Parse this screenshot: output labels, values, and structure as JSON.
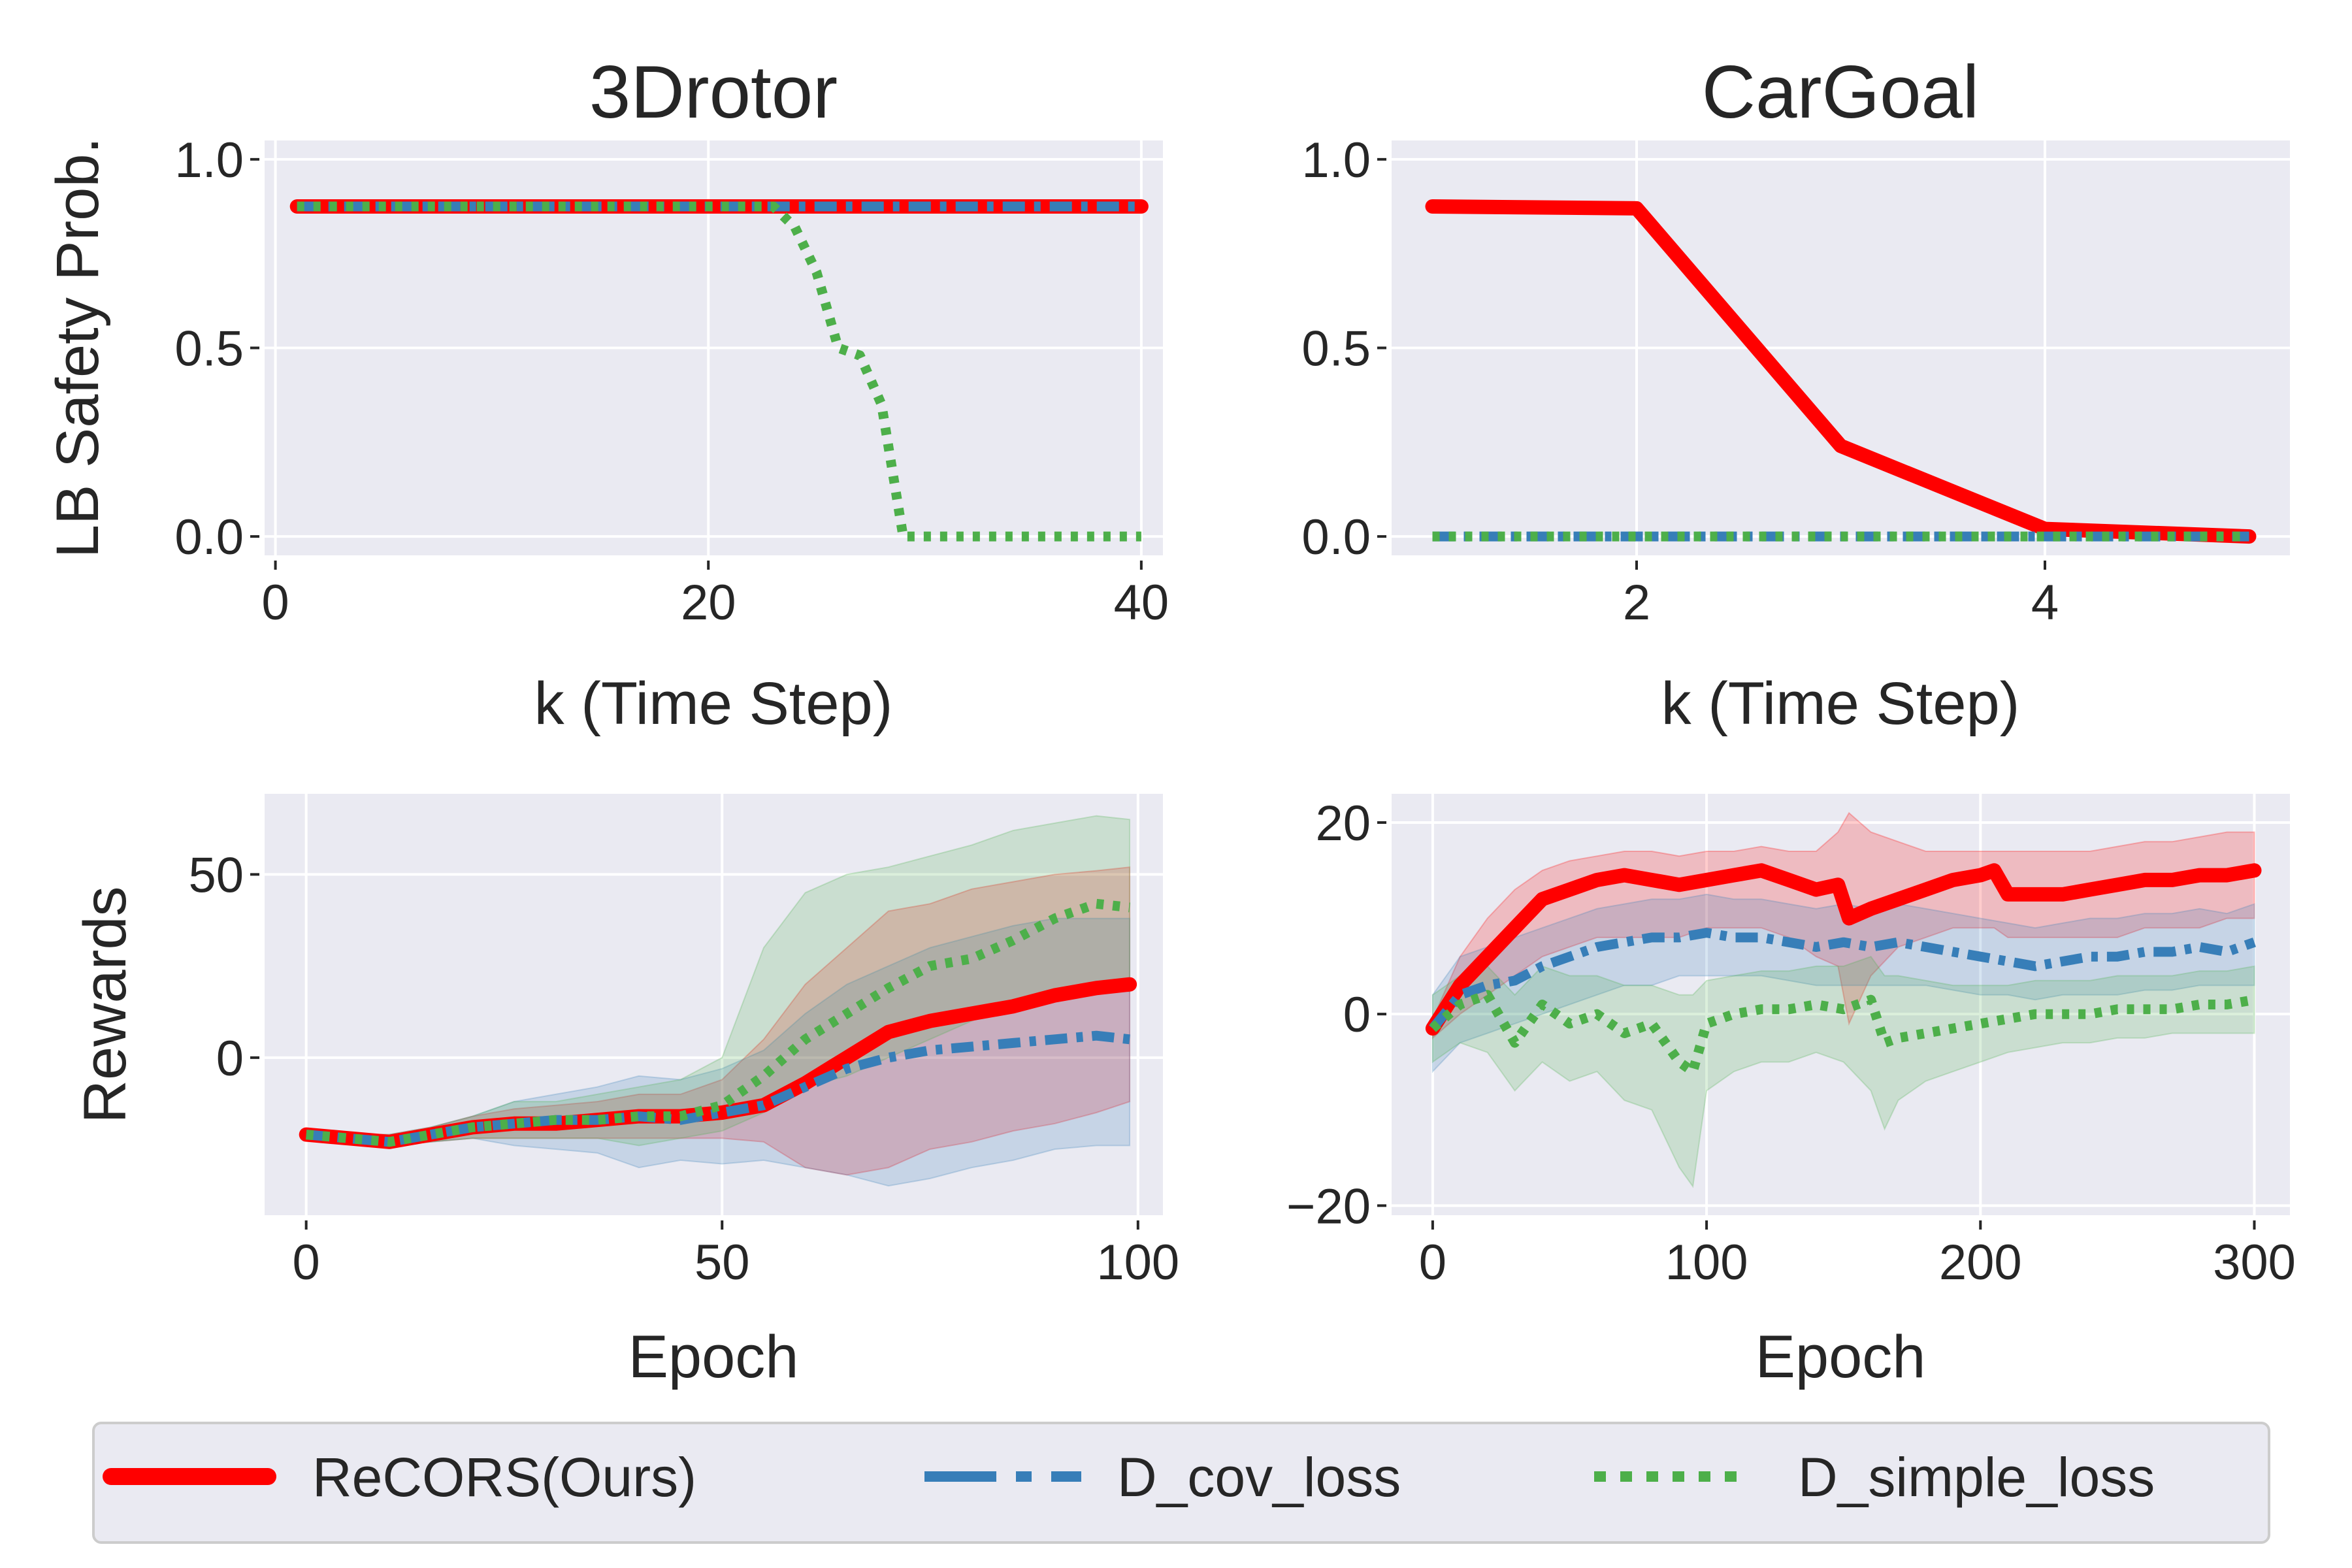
{
  "colors": {
    "background": "#eaeaf2",
    "grid": "#ffffff",
    "recors": "#ff0000",
    "dcov": "#377eb8",
    "dsimple": "#4daf4a",
    "text": "#262626"
  },
  "legend": {
    "items": [
      {
        "key": "recors",
        "label": "ReCORS(Ours)"
      },
      {
        "key": "dcov",
        "label": "D_cov_loss"
      },
      {
        "key": "dsimple",
        "label": "D_simple_loss"
      }
    ]
  },
  "chart_data": [
    {
      "id": "p1",
      "type": "line",
      "title": "3Drotor",
      "xlabel": "k (Time Step)",
      "ylabel": "LB Safety Prob.",
      "xlim": [
        -0.5,
        41
      ],
      "ylim": [
        -0.05,
        1.05
      ],
      "xticks": [
        0,
        20,
        40
      ],
      "yticks": [
        0.0,
        0.5,
        1.0
      ],
      "xtick_labels": [
        "0",
        "20",
        "40"
      ],
      "ytick_labels": [
        "0.0",
        "0.5",
        "1.0"
      ],
      "series": [
        {
          "key": "recors",
          "name": "ReCORS(Ours)",
          "x": [
            1,
            40
          ],
          "y": [
            0.875,
            0.875
          ]
        },
        {
          "key": "dcov",
          "name": "D_cov_loss",
          "x": [
            1,
            40
          ],
          "y": [
            0.875,
            0.875
          ]
        },
        {
          "key": "dsimple",
          "name": "D_simple_loss",
          "x": [
            1,
            23,
            24,
            25,
            26,
            27,
            28,
            29,
            40
          ],
          "y": [
            0.875,
            0.875,
            0.82,
            0.7,
            0.5,
            0.48,
            0.35,
            0.0,
            0.0
          ]
        }
      ]
    },
    {
      "id": "p2",
      "type": "line",
      "title": "CarGoal",
      "xlabel": "k (Time Step)",
      "ylabel": "",
      "xlim": [
        0.8,
        5.2
      ],
      "ylim": [
        -0.05,
        1.05
      ],
      "xticks": [
        2,
        4
      ],
      "yticks": [
        0.0,
        0.5,
        1.0
      ],
      "xtick_labels": [
        "2",
        "4"
      ],
      "ytick_labels": [
        "0.0",
        "0.5",
        "1.0"
      ],
      "series": [
        {
          "key": "recors",
          "name": "ReCORS(Ours)",
          "x": [
            1,
            2,
            3,
            4,
            5
          ],
          "y": [
            0.875,
            0.87,
            0.24,
            0.02,
            0.0
          ]
        },
        {
          "key": "dcov",
          "name": "D_cov_loss",
          "x": [
            1,
            5
          ],
          "y": [
            0.0,
            0.0
          ]
        },
        {
          "key": "dsimple",
          "name": "D_simple_loss",
          "x": [
            1,
            5
          ],
          "y": [
            0.0,
            0.0
          ]
        }
      ]
    },
    {
      "id": "p3",
      "type": "line",
      "title": "",
      "xlabel": "Epoch",
      "ylabel": "Rewards",
      "xlim": [
        -5,
        103
      ],
      "ylim": [
        -43,
        72
      ],
      "xticks": [
        0,
        50,
        100
      ],
      "yticks": [
        0,
        50
      ],
      "xtick_labels": [
        "0",
        "50",
        "100"
      ],
      "ytick_labels": [
        "0",
        "50"
      ],
      "series": [
        {
          "key": "recors",
          "name": "ReCORS(Ours)",
          "x": [
            0,
            5,
            10,
            15,
            20,
            25,
            30,
            35,
            40,
            45,
            50,
            55,
            60,
            65,
            70,
            75,
            80,
            85,
            90,
            95,
            99
          ],
          "y": [
            -21,
            -22,
            -23,
            -21,
            -19,
            -18,
            -18,
            -17,
            -16,
            -16,
            -15,
            -13,
            -7,
            0,
            7,
            10,
            12,
            14,
            17,
            19,
            20
          ],
          "lower": [
            -22,
            -23,
            -24,
            -23,
            -22,
            -22,
            -22,
            -22,
            -22,
            -22,
            -22,
            -23,
            -30,
            -32,
            -30,
            -25,
            -23,
            -20,
            -18,
            -15,
            -12
          ],
          "upper": [
            -20,
            -21,
            -21,
            -19,
            -16,
            -14,
            -13,
            -12,
            -10,
            -10,
            -6,
            5,
            20,
            30,
            40,
            42,
            46,
            48,
            50,
            51,
            52
          ]
        },
        {
          "key": "dcov",
          "name": "D_cov_loss",
          "x": [
            0,
            5,
            10,
            15,
            20,
            25,
            30,
            35,
            40,
            45,
            50,
            55,
            60,
            65,
            70,
            75,
            80,
            85,
            90,
            95,
            99
          ],
          "y": [
            -21,
            -22,
            -23,
            -21,
            -19,
            -18,
            -17,
            -17,
            -16,
            -17,
            -15,
            -13,
            -8,
            -3,
            0,
            2,
            3,
            4,
            5,
            6,
            5
          ],
          "lower": [
            -22,
            -23,
            -24,
            -23,
            -22,
            -24,
            -25,
            -26,
            -30,
            -28,
            -29,
            -28,
            -30,
            -32,
            -35,
            -33,
            -30,
            -28,
            -25,
            -24,
            -24
          ],
          "upper": [
            -20,
            -21,
            -21,
            -19,
            -16,
            -12,
            -10,
            -8,
            -5,
            -6,
            -3,
            2,
            12,
            20,
            25,
            30,
            33,
            36,
            38,
            38,
            38
          ]
        },
        {
          "key": "dsimple",
          "name": "D_simple_loss",
          "x": [
            0,
            5,
            10,
            15,
            20,
            25,
            30,
            35,
            40,
            45,
            50,
            55,
            60,
            65,
            70,
            75,
            80,
            85,
            90,
            95,
            99
          ],
          "y": [
            -21,
            -22,
            -23,
            -21,
            -19,
            -18,
            -17,
            -17,
            -16,
            -16,
            -13,
            -5,
            5,
            12,
            19,
            25,
            27,
            32,
            38,
            42,
            41
          ],
          "lower": [
            -22,
            -23,
            -24,
            -23,
            -22,
            -22,
            -22,
            -22,
            -24,
            -22,
            -20,
            -15,
            -8,
            -5,
            0,
            5,
            10,
            15,
            18,
            20,
            18
          ],
          "upper": [
            -20,
            -21,
            -21,
            -19,
            -16,
            -12,
            -12,
            -10,
            -8,
            -6,
            0,
            30,
            45,
            50,
            52,
            55,
            58,
            62,
            64,
            66,
            65
          ]
        }
      ]
    },
    {
      "id": "p4",
      "type": "line",
      "title": "",
      "xlabel": "Epoch",
      "ylabel": "",
      "xlim": [
        -15,
        313
      ],
      "ylim": [
        -21,
        23
      ],
      "xticks": [
        0,
        100,
        200,
        300
      ],
      "yticks": [
        -20,
        0,
        20
      ],
      "xtick_labels": [
        "0",
        "100",
        "200",
        "300"
      ],
      "ytick_labels": [
        "−20",
        "0",
        "20"
      ],
      "series": [
        {
          "key": "recors",
          "name": "ReCORS(Ours)",
          "x": [
            0,
            10,
            20,
            30,
            40,
            50,
            60,
            70,
            80,
            90,
            100,
            110,
            120,
            130,
            140,
            148,
            152,
            160,
            170,
            180,
            190,
            200,
            205,
            210,
            220,
            230,
            240,
            250,
            260,
            270,
            280,
            290,
            300
          ],
          "y": [
            -1.5,
            3,
            6,
            9,
            12,
            13,
            14,
            14.5,
            14,
            13.5,
            14,
            14.5,
            15,
            14,
            13,
            13.5,
            10,
            11,
            12,
            13,
            14,
            14.5,
            15,
            12.5,
            12.5,
            12.5,
            13,
            13.5,
            14,
            14,
            14.5,
            14.5,
            15
          ],
          "lower": [
            -2.5,
            0,
            2,
            4,
            6,
            7,
            8,
            8,
            8,
            8,
            9,
            9,
            9,
            8,
            6,
            5,
            -1,
            4,
            7,
            8,
            9,
            9,
            9,
            8,
            8,
            8,
            8,
            8,
            9,
            9,
            9,
            10,
            10
          ],
          "upper": [
            -0.5,
            6,
            10,
            13,
            15,
            16,
            16.5,
            17,
            17,
            16.5,
            17,
            17,
            17.5,
            17,
            17,
            19,
            21,
            19,
            18,
            17,
            17,
            17,
            17,
            17,
            17,
            17,
            17,
            17.5,
            18,
            18,
            18.5,
            19,
            19
          ]
        },
        {
          "key": "dcov",
          "name": "D_cov_loss",
          "x": [
            0,
            10,
            20,
            30,
            40,
            50,
            60,
            70,
            80,
            90,
            100,
            110,
            120,
            130,
            140,
            150,
            160,
            170,
            180,
            190,
            200,
            210,
            220,
            230,
            240,
            250,
            260,
            270,
            280,
            290,
            300
          ],
          "y": [
            -1.5,
            2,
            3,
            3.5,
            5,
            6,
            7,
            7.5,
            8,
            8,
            8.5,
            8,
            8,
            7.5,
            7,
            7.5,
            7,
            7.5,
            7,
            6.5,
            6,
            5.5,
            5,
            5.5,
            6,
            6,
            6.5,
            6.5,
            7,
            6.5,
            7.5
          ],
          "lower": [
            -6,
            -3,
            -2,
            -1,
            0,
            1,
            2,
            3,
            3,
            4,
            4,
            4,
            4,
            3.5,
            3,
            3,
            3,
            3,
            3,
            2.5,
            2,
            2,
            1.5,
            2,
            2,
            2,
            2.5,
            2.5,
            3,
            3,
            3
          ],
          "upper": [
            2,
            6,
            7,
            8,
            9,
            10,
            11,
            11.5,
            12,
            12,
            12.5,
            12,
            12,
            11.5,
            11,
            11.5,
            11,
            11.5,
            11,
            10.5,
            10,
            9.5,
            9,
            9.5,
            10,
            10,
            10.5,
            10.5,
            11,
            10.5,
            11.5
          ]
        },
        {
          "key": "dsimple",
          "name": "D_simple_loss",
          "x": [
            0,
            10,
            20,
            30,
            40,
            50,
            60,
            70,
            80,
            90,
            95,
            100,
            110,
            120,
            130,
            140,
            150,
            160,
            165,
            170,
            180,
            190,
            200,
            210,
            220,
            230,
            240,
            250,
            260,
            270,
            280,
            290,
            300
          ],
          "y": [
            -1.5,
            1,
            2,
            -3,
            1,
            -1,
            0,
            -2,
            -1,
            -5,
            -6,
            -1,
            0,
            0.5,
            0.5,
            1,
            0.5,
            1.5,
            -3,
            -2.5,
            -2,
            -1.5,
            -1,
            -0.5,
            0,
            0,
            0,
            0.5,
            0.5,
            0.5,
            1,
            1,
            1.5
          ],
          "lower": [
            -5,
            -3,
            -4,
            -8,
            -5,
            -7,
            -6,
            -9,
            -10,
            -16,
            -18,
            -8,
            -6,
            -5,
            -5,
            -4,
            -5,
            -8,
            -12,
            -9,
            -7,
            -6,
            -5,
            -4,
            -3.5,
            -3,
            -3,
            -2.5,
            -2.5,
            -2,
            -2,
            -2,
            -2
          ],
          "upper": [
            2,
            4,
            5,
            2,
            5,
            4,
            4,
            3,
            3,
            2,
            2,
            3.5,
            4,
            4.5,
            4.5,
            5,
            5,
            6,
            4,
            4,
            3.5,
            3,
            3,
            3,
            3.5,
            3.5,
            3.5,
            4,
            4,
            4,
            4.5,
            4.5,
            5
          ]
        }
      ]
    }
  ]
}
